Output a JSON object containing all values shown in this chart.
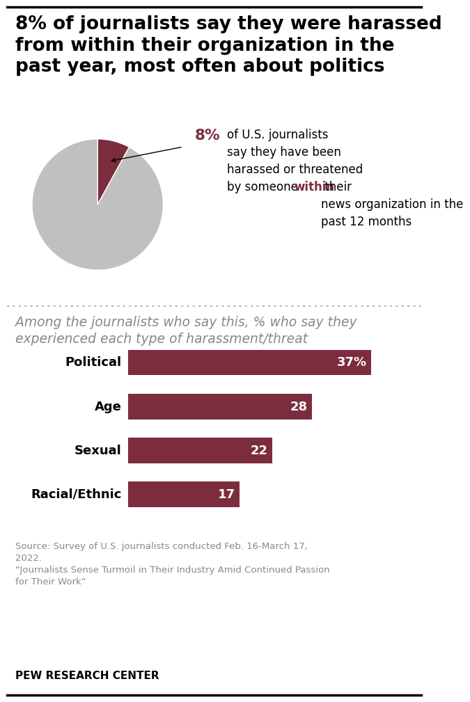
{
  "title": "8% of journalists say they were harassed\nfrom within their organization in the\npast year, most often about politics",
  "pie_values": [
    8,
    92
  ],
  "pie_colors": [
    "#7b2d3e",
    "#c0c0c0"
  ],
  "pie_pct_text": "8%",
  "pie_desc_before_within": "of U.S. journalists\nsay they have been\nharassed or threatened\nby someone ",
  "pie_desc_within": "within",
  "pie_desc_after_within": " their\nnews organization in the\npast 12 months",
  "bar_subtitle": "Among the journalists who say this, % who say they\nexperienced each type of harassment/threat",
  "bar_categories": [
    "Political",
    "Age",
    "Sexual",
    "Racial/Ethnic"
  ],
  "bar_values": [
    37,
    28,
    22,
    17
  ],
  "bar_labels": [
    "37%",
    "28",
    "22",
    "17"
  ],
  "bar_color": "#7b2d3e",
  "bar_text_color": "#ffffff",
  "source_text": "Source: Survey of U.S. journalists conducted Feb. 16-March 17,\n2022.\n“Journalists Sense Turmoil in Their Industry Amid Continued Passion\nfor Their Work”",
  "footer": "PEW RESEARCH CENTER",
  "bg_color": "#ffffff",
  "title_color": "#000000",
  "accent_color": "#7b2d3e",
  "source_color": "#888888",
  "subtitle_color": "#888888",
  "dotted_color": "#aaaaaa",
  "border_color": "#000000"
}
